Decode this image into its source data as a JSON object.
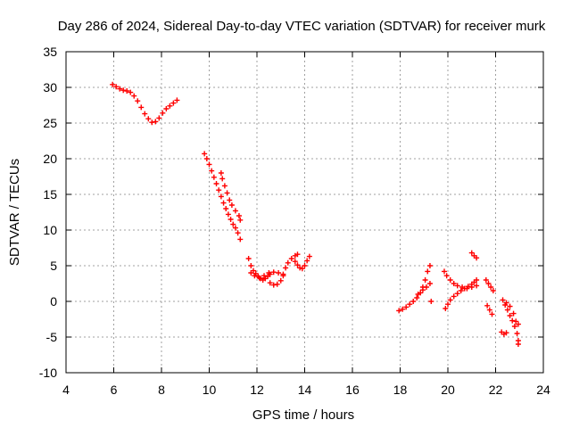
{
  "chart_data": {
    "type": "scatter",
    "title": "Day 286 of 2024, Sidereal Day-to-day VTEC variation (SDTVAR) for receiver murk",
    "xlabel": "GPS time / hours",
    "ylabel": "SDTVAR / TECUs",
    "xlim": [
      4,
      24
    ],
    "ylim": [
      -10,
      35
    ],
    "xticks": [
      4,
      6,
      8,
      10,
      12,
      14,
      16,
      18,
      20,
      22,
      24
    ],
    "yticks": [
      -10,
      -5,
      0,
      5,
      10,
      15,
      20,
      25,
      30,
      35
    ],
    "grid": true,
    "marker": "+",
    "color": "#ff0000",
    "series": [
      {
        "name": "SDTVAR",
        "points": [
          [
            5.95,
            30.4
          ],
          [
            6.1,
            30.1
          ],
          [
            6.25,
            29.8
          ],
          [
            6.4,
            29.6
          ],
          [
            6.55,
            29.5
          ],
          [
            6.7,
            29.3
          ],
          [
            6.85,
            28.8
          ],
          [
            7.0,
            28.1
          ],
          [
            7.15,
            27.2
          ],
          [
            7.3,
            26.3
          ],
          [
            7.45,
            25.6
          ],
          [
            7.6,
            25.1
          ],
          [
            7.75,
            25.2
          ],
          [
            7.9,
            25.7
          ],
          [
            8.05,
            26.4
          ],
          [
            8.2,
            27.0
          ],
          [
            8.35,
            27.4
          ],
          [
            8.5,
            27.8
          ],
          [
            8.65,
            28.2
          ],
          [
            9.8,
            20.7
          ],
          [
            9.9,
            20.0
          ],
          [
            10.0,
            19.2
          ],
          [
            10.1,
            18.3
          ],
          [
            10.2,
            17.4
          ],
          [
            10.3,
            16.5
          ],
          [
            10.4,
            15.6
          ],
          [
            10.5,
            14.7
          ],
          [
            10.6,
            13.8
          ],
          [
            10.7,
            13.0
          ],
          [
            10.8,
            12.2
          ],
          [
            10.9,
            11.5
          ],
          [
            11.0,
            10.8
          ],
          [
            11.1,
            10.3
          ],
          [
            11.2,
            9.6
          ],
          [
            11.3,
            8.7
          ],
          [
            10.5,
            18.0
          ],
          [
            10.55,
            17.2
          ],
          [
            10.65,
            16.2
          ],
          [
            10.75,
            15.2
          ],
          [
            10.85,
            14.2
          ],
          [
            10.95,
            13.5
          ],
          [
            11.1,
            12.7
          ],
          [
            11.25,
            12.0
          ],
          [
            11.3,
            11.4
          ],
          [
            11.65,
            6.0
          ],
          [
            11.75,
            5.0
          ],
          [
            11.85,
            4.3
          ],
          [
            11.95,
            3.9
          ],
          [
            12.05,
            3.5
          ],
          [
            12.15,
            3.2
          ],
          [
            12.25,
            3.0
          ],
          [
            12.35,
            3.2
          ],
          [
            12.45,
            3.5
          ],
          [
            12.55,
            3.8
          ],
          [
            11.75,
            4.0
          ],
          [
            11.9,
            3.6
          ],
          [
            12.1,
            3.3
          ],
          [
            12.3,
            3.6
          ],
          [
            12.5,
            4.0
          ],
          [
            12.7,
            4.1
          ],
          [
            12.9,
            4.0
          ],
          [
            13.1,
            3.6
          ],
          [
            12.55,
            2.6
          ],
          [
            12.7,
            2.3
          ],
          [
            12.85,
            2.4
          ],
          [
            13.0,
            2.9
          ],
          [
            13.1,
            3.8
          ],
          [
            13.2,
            4.7
          ],
          [
            13.3,
            5.4
          ],
          [
            13.45,
            6.0
          ],
          [
            13.6,
            6.4
          ],
          [
            13.7,
            6.6
          ],
          [
            13.6,
            5.6
          ],
          [
            13.7,
            5.1
          ],
          [
            13.8,
            4.7
          ],
          [
            13.9,
            4.6
          ],
          [
            14.0,
            5.0
          ],
          [
            14.1,
            5.7
          ],
          [
            14.2,
            6.3
          ],
          [
            17.95,
            -1.3
          ],
          [
            18.1,
            -1.1
          ],
          [
            18.25,
            -0.8
          ],
          [
            18.4,
            -0.4
          ],
          [
            18.55,
            0.0
          ],
          [
            18.7,
            0.5
          ],
          [
            18.85,
            1.2
          ],
          [
            18.95,
            2.0
          ],
          [
            19.05,
            3.0
          ],
          [
            19.15,
            4.2
          ],
          [
            19.25,
            5.0
          ],
          [
            18.75,
            1.0
          ],
          [
            18.95,
            1.6
          ],
          [
            19.1,
            2.0
          ],
          [
            19.25,
            2.5
          ],
          [
            19.3,
            0.0
          ],
          [
            19.85,
            4.2
          ],
          [
            19.95,
            3.6
          ],
          [
            20.1,
            3.0
          ],
          [
            20.25,
            2.5
          ],
          [
            20.4,
            2.2
          ],
          [
            20.6,
            2.0
          ],
          [
            20.8,
            1.8
          ],
          [
            21.0,
            2.0
          ],
          [
            21.2,
            2.2
          ],
          [
            19.9,
            -1.0
          ],
          [
            20.0,
            -0.4
          ],
          [
            20.1,
            0.2
          ],
          [
            20.25,
            0.7
          ],
          [
            20.4,
            1.1
          ],
          [
            20.55,
            1.5
          ],
          [
            20.7,
            1.8
          ],
          [
            20.85,
            2.1
          ],
          [
            21.0,
            2.4
          ],
          [
            21.1,
            2.7
          ],
          [
            21.2,
            3.0
          ],
          [
            21.0,
            6.8
          ],
          [
            21.1,
            6.4
          ],
          [
            21.2,
            6.1
          ],
          [
            21.6,
            3.0
          ],
          [
            21.7,
            2.5
          ],
          [
            21.8,
            2.0
          ],
          [
            21.9,
            1.5
          ],
          [
            21.65,
            -0.6
          ],
          [
            21.75,
            -1.2
          ],
          [
            21.85,
            -1.8
          ],
          [
            22.3,
            0.2
          ],
          [
            22.4,
            -0.5
          ],
          [
            22.5,
            -1.2
          ],
          [
            22.6,
            -2.0
          ],
          [
            22.7,
            -2.7
          ],
          [
            22.8,
            -3.5
          ],
          [
            22.9,
            -4.5
          ],
          [
            22.95,
            -5.5
          ],
          [
            22.95,
            -6.0
          ],
          [
            22.45,
            -0.2
          ],
          [
            22.6,
            -0.7
          ],
          [
            22.75,
            -1.7
          ],
          [
            22.85,
            -2.8
          ],
          [
            22.95,
            -3.2
          ],
          [
            22.25,
            -4.3
          ],
          [
            22.35,
            -4.6
          ],
          [
            22.45,
            -4.4
          ]
        ]
      }
    ]
  }
}
